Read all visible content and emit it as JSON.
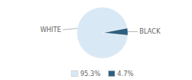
{
  "chart_data": {
    "type": "pie",
    "categories": [
      "WHITE",
      "BLACK"
    ],
    "values": [
      95.3,
      4.7
    ],
    "value_labels": [
      "95.3%",
      "4.7%"
    ],
    "colors": [
      "#d9e8f5",
      "#2e5f80"
    ],
    "legend": "bottom"
  }
}
